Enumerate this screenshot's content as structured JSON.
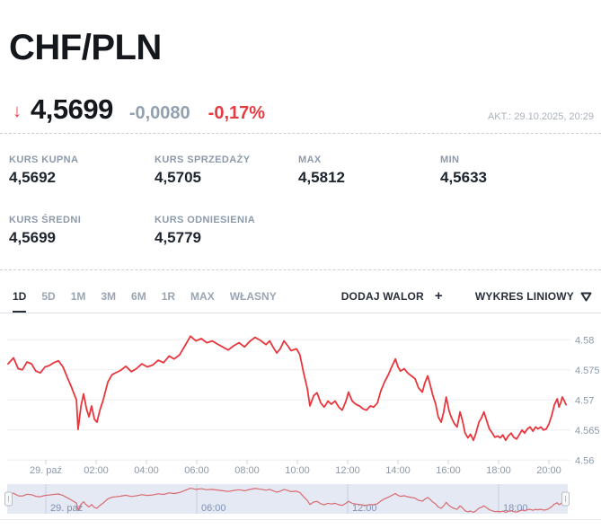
{
  "header": {
    "title": "CHF/PLN"
  },
  "quote": {
    "direction_icon": "↓",
    "price": "4,5699",
    "change": "-0,0080",
    "change_pct": "-0,17%",
    "updated": "AKT.: 29.10.2025, 20:29"
  },
  "stats": [
    {
      "label": "KURS KUPNA",
      "value": "4,5692"
    },
    {
      "label": "KURS SPRZEDAŻY",
      "value": "4,5705"
    },
    {
      "label": "MAX",
      "value": "4,5812"
    },
    {
      "label": "MIN",
      "value": "4,5633"
    },
    {
      "label": "KURS ŚREDNI",
      "value": "4,5699"
    },
    {
      "label": "KURS ODNIESIENIA",
      "value": "4,5779"
    }
  ],
  "toolbar": {
    "ranges": [
      {
        "label": "1D",
        "active": true
      },
      {
        "label": "5D",
        "active": false
      },
      {
        "label": "1M",
        "active": false
      },
      {
        "label": "3M",
        "active": false
      },
      {
        "label": "6M",
        "active": false
      },
      {
        "label": "1R",
        "active": false
      },
      {
        "label": "MAX",
        "active": false
      },
      {
        "label": "WŁASNY",
        "active": false
      }
    ],
    "add_asset_label": "DODAJ WALOR",
    "add_asset_plus": "+",
    "chart_type_label": "WYKRES LINIOWY",
    "chart_type_icon": "triangle-down"
  },
  "chart_data": {
    "type": "line",
    "title": "CHF/PLN 1D",
    "line_color": "#e8363d",
    "nav_line_color": "#d96b71",
    "grid_color": "#ededf1",
    "axis_label_color": "#8e99a7",
    "nav_bg_color": "#e4e9f4",
    "nav_grid_color": "#c7cfe0",
    "nav_label_color": "#8091b3",
    "ylim": [
      4.56,
      4.582
    ],
    "y_ticks": [
      {
        "label": "4.58",
        "value": 4.58
      },
      {
        "label": "4.575",
        "value": 4.575
      },
      {
        "label": "4.57",
        "value": 4.57
      },
      {
        "label": "4.565",
        "value": 4.565
      },
      {
        "label": "4.56",
        "value": 4.56
      }
    ],
    "x_ticks": [
      {
        "label": "29. paź",
        "t": 90
      },
      {
        "label": "02:00",
        "t": 210
      },
      {
        "label": "04:00",
        "t": 330
      },
      {
        "label": "06:00",
        "t": 450
      },
      {
        "label": "08:00",
        "t": 570
      },
      {
        "label": "10:00",
        "t": 690
      },
      {
        "label": "12:00",
        "t": 810
      },
      {
        "label": "14:00",
        "t": 930
      },
      {
        "label": "16:00",
        "t": 1050
      },
      {
        "label": "18:00",
        "t": 1170
      },
      {
        "label": "20:00",
        "t": 1290
      }
    ],
    "navigator_ticks": [
      {
        "label": "29. paź",
        "t": 90
      },
      {
        "label": "06:00",
        "t": 450
      },
      {
        "label": "12:00",
        "t": 810
      },
      {
        "label": "18:00",
        "t": 1170
      }
    ],
    "t_range": [
      0,
      1332
    ],
    "t_note": "minutes since 28.10 22:30, span ends 29.10 ~20:30",
    "series": [
      {
        "name": "CHF/PLN",
        "points": [
          [
            0,
            4.576
          ],
          [
            13,
            4.577
          ],
          [
            24,
            4.5752
          ],
          [
            34,
            4.575
          ],
          [
            45,
            4.5763
          ],
          [
            56,
            4.576
          ],
          [
            66,
            4.5748
          ],
          [
            77,
            4.5745
          ],
          [
            88,
            4.5755
          ],
          [
            98,
            4.5757
          ],
          [
            109,
            4.5762
          ],
          [
            120,
            4.5765
          ],
          [
            131,
            4.5755
          ],
          [
            141,
            4.5738
          ],
          [
            152,
            4.572
          ],
          [
            163,
            4.57
          ],
          [
            167,
            4.5651
          ],
          [
            174,
            4.569
          ],
          [
            180,
            4.571
          ],
          [
            187,
            4.5685
          ],
          [
            193,
            4.5672
          ],
          [
            199,
            4.569
          ],
          [
            206,
            4.5668
          ],
          [
            212,
            4.5663
          ],
          [
            219,
            4.5683
          ],
          [
            227,
            4.57
          ],
          [
            238,
            4.573
          ],
          [
            248,
            4.5742
          ],
          [
            268,
            4.5749
          ],
          [
            281,
            4.5756
          ],
          [
            294,
            4.5747
          ],
          [
            306,
            4.5752
          ],
          [
            319,
            4.576
          ],
          [
            332,
            4.5755
          ],
          [
            345,
            4.5758
          ],
          [
            358,
            4.5766
          ],
          [
            371,
            4.5762
          ],
          [
            384,
            4.5773
          ],
          [
            396,
            4.5768
          ],
          [
            409,
            4.5775
          ],
          [
            422,
            4.579
          ],
          [
            435,
            4.5806
          ],
          [
            448,
            4.5798
          ],
          [
            461,
            4.5802
          ],
          [
            474,
            4.5795
          ],
          [
            487,
            4.5798
          ],
          [
            499,
            4.5793
          ],
          [
            512,
            4.5788
          ],
          [
            525,
            4.5783
          ],
          [
            538,
            4.579
          ],
          [
            551,
            4.5795
          ],
          [
            564,
            4.5788
          ],
          [
            576,
            4.5797
          ],
          [
            589,
            4.5804
          ],
          [
            602,
            4.5799
          ],
          [
            615,
            4.5792
          ],
          [
            624,
            4.5798
          ],
          [
            632,
            4.5788
          ],
          [
            641,
            4.5778
          ],
          [
            649,
            4.5785
          ],
          [
            658,
            4.5798
          ],
          [
            667,
            4.579
          ],
          [
            675,
            4.5782
          ],
          [
            688,
            4.5785
          ],
          [
            696,
            4.5775
          ],
          [
            705,
            4.5745
          ],
          [
            714,
            4.5718
          ],
          [
            720,
            4.569
          ],
          [
            729,
            4.5707
          ],
          [
            737,
            4.5712
          ],
          [
            746,
            4.5695
          ],
          [
            754,
            4.5688
          ],
          [
            763,
            4.5698
          ],
          [
            771,
            4.5693
          ],
          [
            780,
            4.5698
          ],
          [
            789,
            4.5688
          ],
          [
            797,
            4.5683
          ],
          [
            806,
            4.5698
          ],
          [
            812,
            4.5713
          ],
          [
            821,
            4.5698
          ],
          [
            829,
            4.5693
          ],
          [
            838,
            4.569
          ],
          [
            847,
            4.5685
          ],
          [
            855,
            4.5683
          ],
          [
            864,
            4.569
          ],
          [
            872,
            4.5688
          ],
          [
            881,
            4.5695
          ],
          [
            889,
            4.5715
          ],
          [
            898,
            4.573
          ],
          [
            907,
            4.5742
          ],
          [
            915,
            4.5755
          ],
          [
            924,
            4.5768
          ],
          [
            930,
            4.5755
          ],
          [
            936,
            4.5748
          ],
          [
            945,
            4.5752
          ],
          [
            953,
            4.5745
          ],
          [
            962,
            4.574
          ],
          [
            971,
            4.5735
          ],
          [
            979,
            4.572
          ],
          [
            988,
            4.5713
          ],
          [
            994,
            4.5728
          ],
          [
            1001,
            4.574
          ],
          [
            1007,
            4.5725
          ],
          [
            1013,
            4.5708
          ],
          [
            1020,
            4.5693
          ],
          [
            1026,
            4.5672
          ],
          [
            1033,
            4.5663
          ],
          [
            1039,
            4.568
          ],
          [
            1045,
            4.5705
          ],
          [
            1052,
            4.5682
          ],
          [
            1058,
            4.567
          ],
          [
            1065,
            4.566
          ],
          [
            1071,
            4.5655
          ],
          [
            1078,
            4.568
          ],
          [
            1084,
            4.5665
          ],
          [
            1090,
            4.5645
          ],
          [
            1097,
            4.5637
          ],
          [
            1103,
            4.5643
          ],
          [
            1110,
            4.5633
          ],
          [
            1116,
            4.5645
          ],
          [
            1123,
            4.5663
          ],
          [
            1129,
            4.567
          ],
          [
            1135,
            4.568
          ],
          [
            1142,
            4.5665
          ],
          [
            1148,
            4.5652
          ],
          [
            1155,
            4.5645
          ],
          [
            1161,
            4.5638
          ],
          [
            1168,
            4.564
          ],
          [
            1174,
            4.5637
          ],
          [
            1180,
            4.5642
          ],
          [
            1187,
            4.5633
          ],
          [
            1193,
            4.564
          ],
          [
            1200,
            4.5645
          ],
          [
            1206,
            4.5638
          ],
          [
            1213,
            4.5635
          ],
          [
            1219,
            4.5642
          ],
          [
            1226,
            4.565
          ],
          [
            1232,
            4.5645
          ],
          [
            1239,
            4.5652
          ],
          [
            1245,
            4.5655
          ],
          [
            1252,
            4.5648
          ],
          [
            1258,
            4.5655
          ],
          [
            1264,
            4.5652
          ],
          [
            1271,
            4.5655
          ],
          [
            1277,
            4.565
          ],
          [
            1284,
            4.5652
          ],
          [
            1290,
            4.566
          ],
          [
            1297,
            4.5675
          ],
          [
            1303,
            4.5692
          ],
          [
            1310,
            4.5702
          ],
          [
            1314,
            4.5688
          ],
          [
            1318,
            4.5695
          ],
          [
            1322,
            4.5705
          ],
          [
            1327,
            4.5698
          ],
          [
            1331,
            4.5692
          ]
        ]
      }
    ]
  }
}
